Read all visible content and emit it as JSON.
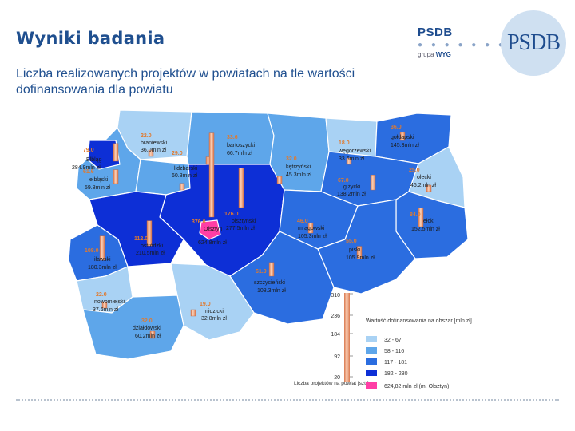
{
  "title": "Wyniki badania",
  "subtitle": "Liczba realizowanych projektów w powiatach na tle wartości dofinansowania dla powiatu",
  "brand": {
    "name": "PSDB",
    "dots": "● ● ● ● ● ● ●",
    "grupa": "grupa",
    "group": "WYG",
    "logo": "PSDB"
  },
  "colors": {
    "c1": "#a9d2f4",
    "c2": "#5ea6ea",
    "c3": "#2b6de0",
    "c4": "#0d2fd6",
    "c5": "#ff3ea5",
    "bar": "#f3a37a"
  },
  "districts": [
    {
      "name": "braniewski",
      "value": "36.0mln zł",
      "count": "22.0"
    },
    {
      "name": "bartoszycki",
      "value": "66.7mln zł",
      "count": "33.6"
    },
    {
      "name": "węgorzewski",
      "value": "33.6mln zł",
      "count": "18.0"
    },
    {
      "name": "gołdapski",
      "value": "145.3mln zł",
      "count": "36.0"
    },
    {
      "name": "Elbląg",
      "value": "284.9mln zł",
      "count": "79.0"
    },
    {
      "name": "elbląski",
      "value": "59.8mln zł",
      "count": "61.6"
    },
    {
      "name": "lidzbarski",
      "value": "60.3mln zł",
      "count": "29.0"
    },
    {
      "name": "kętrzyński",
      "value": "45.3mln zł",
      "count": "32.0"
    },
    {
      "name": "giżycki",
      "value": "138.2mln zł",
      "count": "67.0"
    },
    {
      "name": "olecki",
      "value": "46.2mln zł",
      "count": "25.0"
    },
    {
      "name": "olsztyński",
      "value": "277.5mln zł",
      "count": "176.0"
    },
    {
      "name": "Olsztyn",
      "value": "624.8mln zł",
      "count": "376.0"
    },
    {
      "name": "mrągowski",
      "value": "105.3mln zł",
      "count": "46.0"
    },
    {
      "name": "ełcki",
      "value": "152.5mln zł",
      "count": "84.0"
    },
    {
      "name": "ostródzki",
      "value": "210.5mln zł",
      "count": "112.0"
    },
    {
      "name": "iławski",
      "value": "180.3mln zł",
      "count": "108.0"
    },
    {
      "name": "piski",
      "value": "105.9mln zł",
      "count": "55.0"
    },
    {
      "name": "szczycieński",
      "value": "108.3mln zł",
      "count": "61.0"
    },
    {
      "name": "nowomiejski",
      "value": "37.6mln zł",
      "count": "22.0"
    },
    {
      "name": "nidzicki",
      "value": "32.8mln zł",
      "count": "19.0"
    },
    {
      "name": "działdowski",
      "value": "60.2mln zł",
      "count": "32.0"
    }
  ],
  "scale": {
    "ticks": [
      "310",
      "236",
      "184",
      "92",
      "20"
    ],
    "caption": "Liczba projektów na powiat [szt.]"
  },
  "legend": {
    "title": "Wartość dofinansowania na obszar [mln zł]",
    "items": [
      {
        "label": "32 - 67",
        "color": "#a9d2f4"
      },
      {
        "label": "58 - 116",
        "color": "#5ea6ea"
      },
      {
        "label": "117 - 181",
        "color": "#2b6de0"
      },
      {
        "label": "182 - 280",
        "color": "#0d2fd6"
      },
      {
        "label": "624,82 mln zł (m. Olsztyn)",
        "color": "#ff3ea5"
      }
    ]
  }
}
